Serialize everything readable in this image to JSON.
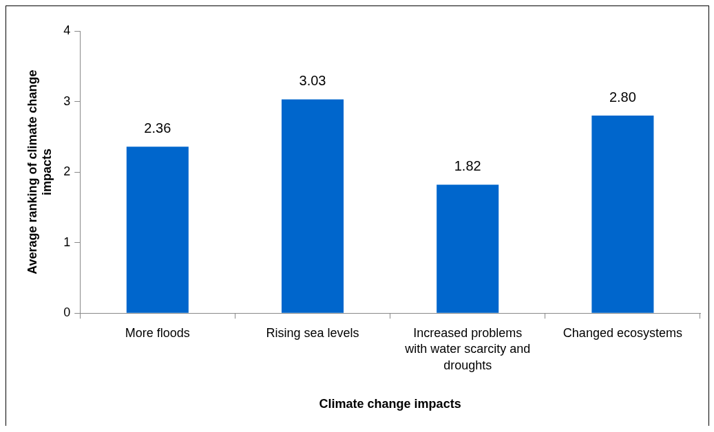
{
  "chart_data": {
    "type": "bar",
    "xlabel": "Climate change impacts",
    "ylabel": "Average ranking of climate change impacts",
    "categories": [
      "More floods",
      "Rising sea levels",
      "Increased problems with water scarcity and droughts",
      "Changed ecosystems"
    ],
    "values": [
      2.36,
      3.03,
      1.82,
      2.8
    ],
    "value_labels": [
      "2.36",
      "3.03",
      "1.82",
      "2.80"
    ],
    "color": "#0066cc",
    "ylim": [
      0,
      4
    ],
    "yticks": [
      0,
      1,
      2,
      3,
      4
    ],
    "grid": false,
    "legend": false
  }
}
